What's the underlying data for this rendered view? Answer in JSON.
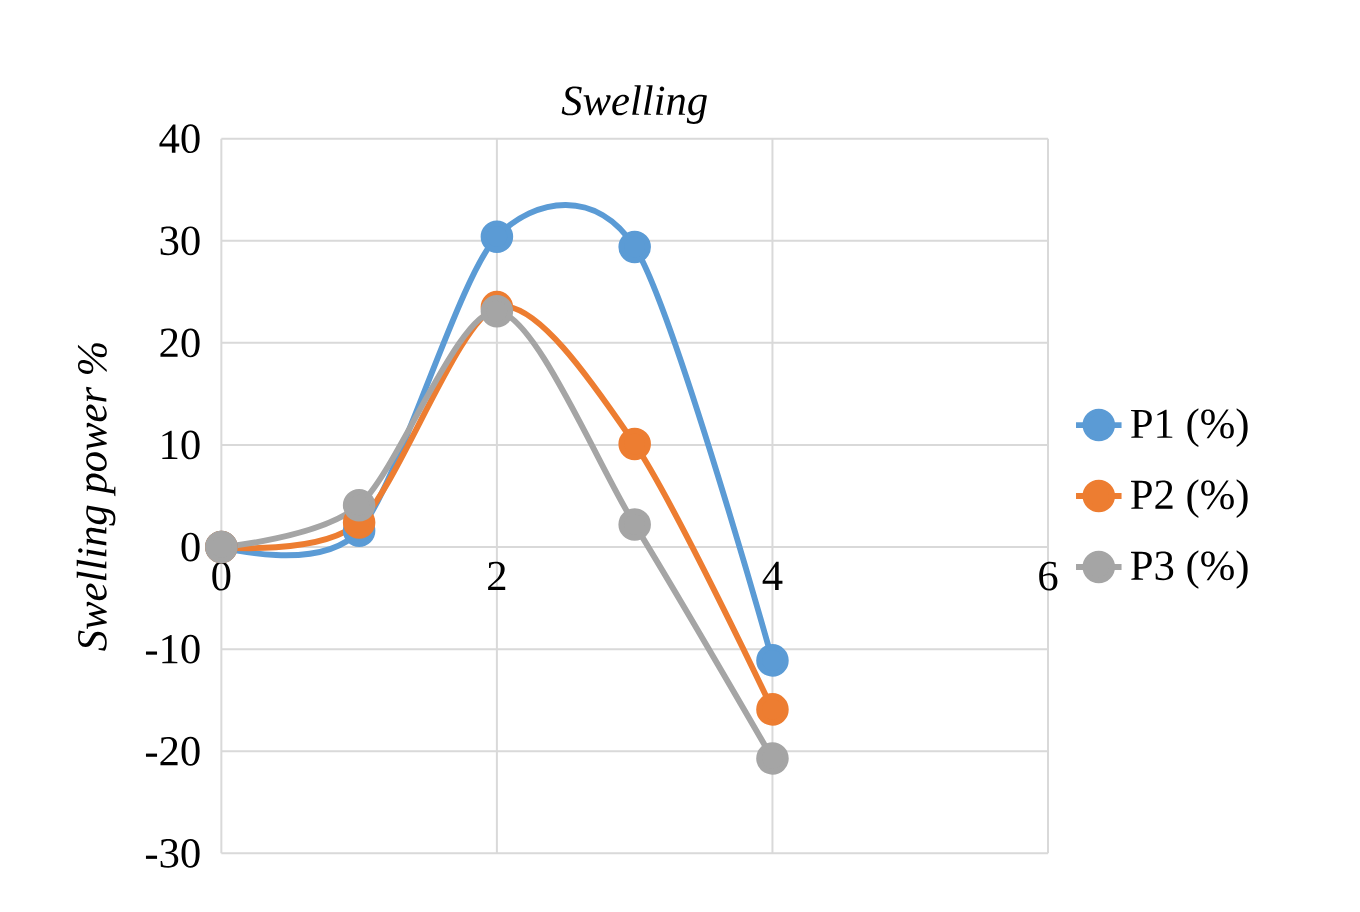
{
  "chart_data": {
    "type": "line",
    "title": "Swelling",
    "ylabel": "Swelling power %",
    "x": [
      0,
      1,
      2,
      3,
      4
    ],
    "series": [
      {
        "name": "P1 (%)",
        "color": "#5b9bd5",
        "values": [
          0,
          1.6,
          30.4,
          29.4,
          -11.1
        ]
      },
      {
        "name": "P2 (%)",
        "color": "#ed7d31",
        "values": [
          0,
          2.4,
          23.5,
          10.1,
          -15.9
        ]
      },
      {
        "name": "P3 (%)",
        "color": "#a5a5a5",
        "values": [
          0,
          4.1,
          23.1,
          2.2,
          -20.7
        ]
      }
    ],
    "xlim": [
      0,
      6
    ],
    "xticks": [
      0,
      2,
      4,
      6
    ],
    "ylim": [
      -30,
      40
    ],
    "yticks": [
      -30,
      -20,
      -10,
      0,
      10,
      20,
      30,
      40
    ],
    "grid": true,
    "legend": "right",
    "marker": "circle",
    "line_style": "solid"
  }
}
